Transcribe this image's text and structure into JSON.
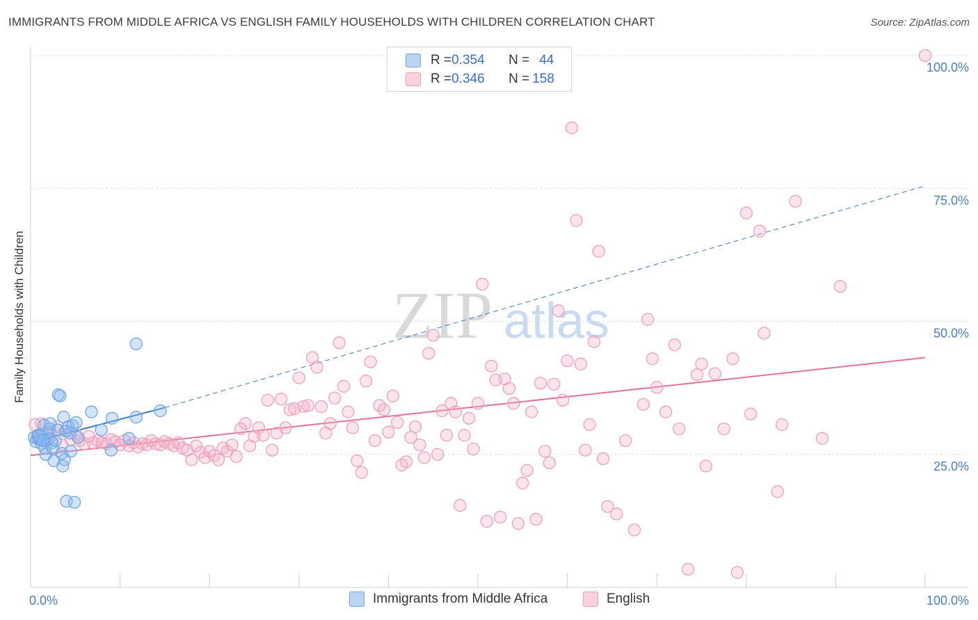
{
  "title": "IMMIGRANTS FROM MIDDLE AFRICA VS ENGLISH FAMILY HOUSEHOLDS WITH CHILDREN CORRELATION CHART",
  "source": "Source: ZipAtlas.com",
  "watermark": {
    "zip": "ZIP",
    "atlas": "atlas"
  },
  "legend": {
    "rows": [
      {
        "r_label": "R = ",
        "r_value": "0.354",
        "n_label": "N = ",
        "n_value": "44",
        "color": "#6ea6e8"
      },
      {
        "r_label": "R = ",
        "r_value": "0.346",
        "n_label": "N = ",
        "n_value": "158",
        "color": "#f2a0ba"
      }
    ]
  },
  "bottom_legend": [
    "Immigrants from Middle Africa",
    "English"
  ],
  "chart_data": {
    "type": "scatter",
    "title": "IMMIGRANTS FROM MIDDLE AFRICA VS ENGLISH FAMILY HOUSEHOLDS WITH CHILDREN CORRELATION CHART",
    "xlabel": "",
    "ylabel": "Family Households with Children",
    "xlim": [
      0,
      100
    ],
    "ylim": [
      0,
      100
    ],
    "x_tick_labels": [
      {
        "value": 0,
        "label": "0.0%"
      },
      {
        "value": 100,
        "label": "100.0%"
      }
    ],
    "y_tick_labels": [
      {
        "value": 25,
        "label": "25.0%"
      },
      {
        "value": 50,
        "label": "50.0%"
      },
      {
        "value": 75,
        "label": "75.0%"
      },
      {
        "value": 100,
        "label": "100.0%"
      }
    ],
    "series": [
      {
        "name": "Immigrants from Middle Africa",
        "color": "#6ea6e8",
        "line_color": "#3a78d0",
        "trend": {
          "x0": 0,
          "y0": 27.2,
          "x1": 15,
          "y1": 33.8,
          "dashed_to_x": 100,
          "dashed_to_y": 75.5
        },
        "points": [
          [
            0.4,
            28.2
          ],
          [
            0.6,
            27.4
          ],
          [
            0.8,
            28.6
          ],
          [
            1.0,
            27.8
          ],
          [
            1.2,
            27.0
          ],
          [
            1.3,
            28.8
          ],
          [
            1.5,
            30.5
          ],
          [
            1.6,
            26.2
          ],
          [
            1.7,
            25.0
          ],
          [
            1.8,
            27.6
          ],
          [
            2.0,
            28.0
          ],
          [
            2.1,
            29.8
          ],
          [
            2.2,
            30.8
          ],
          [
            2.4,
            27.2
          ],
          [
            2.5,
            26.0
          ],
          [
            2.6,
            23.8
          ],
          [
            2.8,
            27.6
          ],
          [
            3.0,
            29.6
          ],
          [
            3.1,
            36.2
          ],
          [
            3.3,
            36.0
          ],
          [
            3.5,
            25.2
          ],
          [
            3.6,
            22.8
          ],
          [
            3.7,
            32.0
          ],
          [
            3.8,
            24.0
          ],
          [
            3.9,
            29.4
          ],
          [
            4.0,
            16.2
          ],
          [
            4.2,
            30.2
          ],
          [
            4.4,
            29.0
          ],
          [
            4.5,
            25.6
          ],
          [
            4.7,
            30.4
          ],
          [
            4.9,
            16.0
          ],
          [
            5.1,
            31.0
          ],
          [
            5.3,
            28.2
          ],
          [
            6.8,
            33.0
          ],
          [
            7.9,
            29.6
          ],
          [
            9.0,
            25.8
          ],
          [
            9.1,
            31.8
          ],
          [
            11.0,
            28.0
          ],
          [
            11.8,
            32.0
          ],
          [
            11.8,
            45.8
          ],
          [
            14.5,
            33.2
          ],
          [
            1.1,
            27.8
          ],
          [
            0.9,
            28.4
          ],
          [
            1.4,
            27.6
          ]
        ]
      },
      {
        "name": "English",
        "color": "#f2a0ba",
        "line_color": "#e3709a",
        "trend": {
          "x0": 0,
          "y0": 24.8,
          "x1": 100,
          "y1": 43.2
        },
        "points": [
          [
            0.5,
            30.6
          ],
          [
            0.8,
            28.0
          ],
          [
            1.2,
            30.8
          ],
          [
            1.6,
            27.4
          ],
          [
            2.0,
            29.2
          ],
          [
            2.5,
            28.6
          ],
          [
            3.0,
            30.2
          ],
          [
            3.5,
            26.8
          ],
          [
            4.0,
            29.4
          ],
          [
            4.5,
            27.8
          ],
          [
            5.0,
            28.8
          ],
          [
            5.5,
            27.6
          ],
          [
            6.0,
            27.0
          ],
          [
            6.5,
            28.4
          ],
          [
            7.0,
            27.2
          ],
          [
            7.5,
            27.6
          ],
          [
            8.0,
            27.2
          ],
          [
            8.5,
            27.0
          ],
          [
            9.0,
            27.8
          ],
          [
            9.5,
            27.4
          ],
          [
            10.0,
            26.8
          ],
          [
            10.5,
            27.6
          ],
          [
            11.0,
            26.6
          ],
          [
            11.5,
            27.2
          ],
          [
            12.0,
            26.4
          ],
          [
            12.5,
            27.0
          ],
          [
            13.0,
            26.8
          ],
          [
            13.5,
            27.6
          ],
          [
            14.0,
            27.0
          ],
          [
            14.5,
            26.8
          ],
          [
            15.0,
            27.4
          ],
          [
            15.5,
            27.0
          ],
          [
            16.0,
            26.6
          ],
          [
            16.5,
            27.2
          ],
          [
            17.0,
            26.2
          ],
          [
            17.5,
            25.8
          ],
          [
            18.0,
            24.0
          ],
          [
            18.5,
            26.6
          ],
          [
            19.0,
            25.4
          ],
          [
            19.5,
            24.4
          ],
          [
            20.0,
            25.6
          ],
          [
            20.5,
            24.8
          ],
          [
            21.0,
            24.0
          ],
          [
            21.5,
            26.2
          ],
          [
            22.0,
            25.6
          ],
          [
            22.5,
            26.8
          ],
          [
            23.0,
            24.6
          ],
          [
            23.5,
            29.8
          ],
          [
            24.0,
            30.8
          ],
          [
            24.5,
            26.6
          ],
          [
            25.0,
            28.4
          ],
          [
            25.5,
            30.0
          ],
          [
            26.0,
            28.6
          ],
          [
            26.5,
            35.2
          ],
          [
            27.0,
            25.8
          ],
          [
            27.5,
            29.0
          ],
          [
            28.0,
            35.4
          ],
          [
            28.5,
            30.0
          ],
          [
            29.0,
            33.4
          ],
          [
            29.5,
            33.6
          ],
          [
            30.0,
            39.4
          ],
          [
            30.5,
            34.0
          ],
          [
            31.0,
            34.2
          ],
          [
            31.5,
            43.2
          ],
          [
            32.0,
            41.4
          ],
          [
            32.5,
            34.0
          ],
          [
            33.0,
            29.0
          ],
          [
            33.5,
            30.8
          ],
          [
            34.0,
            35.6
          ],
          [
            34.5,
            46.0
          ],
          [
            35.0,
            37.8
          ],
          [
            35.5,
            33.0
          ],
          [
            36.0,
            30.0
          ],
          [
            36.5,
            23.8
          ],
          [
            37.0,
            21.6
          ],
          [
            37.5,
            38.8
          ],
          [
            38.0,
            42.4
          ],
          [
            38.5,
            27.6
          ],
          [
            39.0,
            34.2
          ],
          [
            39.5,
            33.4
          ],
          [
            40.0,
            29.2
          ],
          [
            40.5,
            36.0
          ],
          [
            41.0,
            31.0
          ],
          [
            41.5,
            23.0
          ],
          [
            42.0,
            23.6
          ],
          [
            42.5,
            28.2
          ],
          [
            43.0,
            30.2
          ],
          [
            43.5,
            26.8
          ],
          [
            44.0,
            24.4
          ],
          [
            44.5,
            44.0
          ],
          [
            45.0,
            47.4
          ],
          [
            45.5,
            25.0
          ],
          [
            46.0,
            33.2
          ],
          [
            46.5,
            28.6
          ],
          [
            47.0,
            34.6
          ],
          [
            47.5,
            33.0
          ],
          [
            48.0,
            15.4
          ],
          [
            48.5,
            28.6
          ],
          [
            49.0,
            31.8
          ],
          [
            49.5,
            26.0
          ],
          [
            50.0,
            34.6
          ],
          [
            50.5,
            57.0
          ],
          [
            51.0,
            12.4
          ],
          [
            51.5,
            41.6
          ],
          [
            52.0,
            39.0
          ],
          [
            52.5,
            13.2
          ],
          [
            53.0,
            39.2
          ],
          [
            53.5,
            37.4
          ],
          [
            54.0,
            34.6
          ],
          [
            54.5,
            12.0
          ],
          [
            55.0,
            19.6
          ],
          [
            55.5,
            22.0
          ],
          [
            56.0,
            33.0
          ],
          [
            56.5,
            12.8
          ],
          [
            57.0,
            38.4
          ],
          [
            57.5,
            25.6
          ],
          [
            58.0,
            23.4
          ],
          [
            58.5,
            38.2
          ],
          [
            59.0,
            52.0
          ],
          [
            59.5,
            35.2
          ],
          [
            60.0,
            42.6
          ],
          [
            60.5,
            86.4
          ],
          [
            61.0,
            69.0
          ],
          [
            61.5,
            42.0
          ],
          [
            62.0,
            25.8
          ],
          [
            62.5,
            30.6
          ],
          [
            63.0,
            46.2
          ],
          [
            63.5,
            63.2
          ],
          [
            64.0,
            24.2
          ],
          [
            64.5,
            15.2
          ],
          [
            65.5,
            13.8
          ],
          [
            66.5,
            27.6
          ],
          [
            67.5,
            10.8
          ],
          [
            68.5,
            34.4
          ],
          [
            69.0,
            50.4
          ],
          [
            69.5,
            43.0
          ],
          [
            70.0,
            37.6
          ],
          [
            71.0,
            33.0
          ],
          [
            72.0,
            45.6
          ],
          [
            72.5,
            29.8
          ],
          [
            73.5,
            3.4
          ],
          [
            74.5,
            40.0
          ],
          [
            75.0,
            42.0
          ],
          [
            75.5,
            22.8
          ],
          [
            76.5,
            40.2
          ],
          [
            77.5,
            29.8
          ],
          [
            78.5,
            43.0
          ],
          [
            79.0,
            2.8
          ],
          [
            80.0,
            70.4
          ],
          [
            80.5,
            32.6
          ],
          [
            81.5,
            67.0
          ],
          [
            82.0,
            47.8
          ],
          [
            83.5,
            18.0
          ],
          [
            84.0,
            30.6
          ],
          [
            85.5,
            72.6
          ],
          [
            88.5,
            28.0
          ],
          [
            90.5,
            56.6
          ],
          [
            100.0,
            100.0
          ]
        ]
      }
    ]
  }
}
